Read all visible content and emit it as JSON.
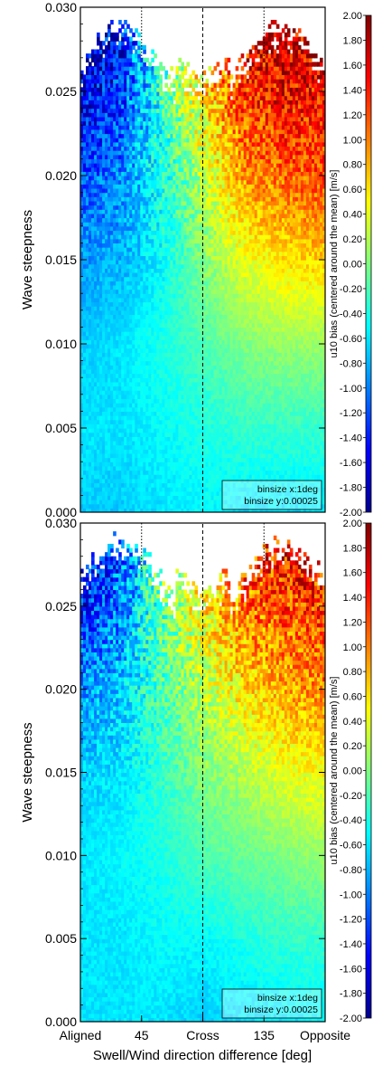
{
  "chart_data": [
    {
      "type": "heatmap",
      "xlabel": "",
      "ylabel": "Wave steepness",
      "xlim": [
        0,
        180
      ],
      "ylim": [
        0,
        0.03
      ],
      "yticks": [
        "0.000",
        "0.005",
        "0.010",
        "0.015",
        "0.020",
        "0.025",
        "0.030"
      ],
      "colorbar": {
        "label": "u10 bias (centered around the mean) [m/s]",
        "range": [
          -2.0,
          2.0
        ],
        "ticks": [
          "-2.00",
          "-1.80",
          "-1.60",
          "-1.40",
          "-1.20",
          "-1.00",
          "-0.80",
          "-0.60",
          "-0.40",
          "-0.20",
          "0.00",
          "0.20",
          "0.40",
          "0.60",
          "0.80",
          "1.00",
          "1.20",
          "1.40",
          "1.60",
          "1.80",
          "2.00"
        ]
      },
      "reference_lines": [
        45,
        90,
        135
      ],
      "annotation": [
        "binsize x:1deg",
        "binsize y:0.00025"
      ],
      "bias_field": {
        "x_deg": [
          0,
          30,
          60,
          90,
          120,
          150,
          180
        ],
        "y_steepness": [
          0.0,
          0.005,
          0.01,
          0.015,
          0.02,
          0.025
        ],
        "values": [
          [
            -0.7,
            -0.7,
            -0.6,
            -0.5,
            -0.6,
            -0.6,
            -0.6
          ],
          [
            -0.6,
            -0.6,
            -0.5,
            -0.4,
            -0.3,
            -0.3,
            -0.3
          ],
          [
            -0.7,
            -0.6,
            -0.4,
            -0.2,
            0.0,
            0.1,
            0.1
          ],
          [
            -0.9,
            -0.8,
            -0.5,
            0.0,
            0.4,
            0.6,
            0.7
          ],
          [
            -1.2,
            -1.0,
            -0.4,
            0.2,
            0.9,
            1.1,
            1.2
          ],
          [
            -1.6,
            -1.3,
            -0.3,
            0.6,
            1.3,
            1.5,
            1.5
          ]
        ]
      }
    },
    {
      "type": "heatmap",
      "xlabel": "Swell/Wind direction difference [deg]",
      "ylabel": "Wave steepness",
      "xlim": [
        0,
        180
      ],
      "ylim": [
        0,
        0.03
      ],
      "xticks": [
        {
          "value": 0,
          "label": "Aligned"
        },
        {
          "value": 45,
          "label": "45"
        },
        {
          "value": 90,
          "label": "Cross"
        },
        {
          "value": 135,
          "label": "135"
        },
        {
          "value": 180,
          "label": "Opposite"
        }
      ],
      "yticks": [
        "0.000",
        "0.005",
        "0.010",
        "0.015",
        "0.020",
        "0.025",
        "0.030"
      ],
      "colorbar": {
        "label": "u10 bias (centered around the mean) [m/s]",
        "range": [
          -2.0,
          2.0
        ],
        "ticks": [
          "-2.00",
          "-1.80",
          "-1.60",
          "-1.40",
          "-1.20",
          "-1.00",
          "-0.80",
          "-0.60",
          "-0.40",
          "-0.20",
          "0.00",
          "0.20",
          "0.40",
          "0.60",
          "0.80",
          "1.00",
          "1.20",
          "1.40",
          "1.60",
          "1.80",
          "2.00"
        ]
      },
      "reference_lines": [
        45,
        90,
        135
      ],
      "annotation": [
        "binsize x:1deg",
        "binsize y:0.00025"
      ],
      "bias_field": {
        "x_deg": [
          0,
          30,
          60,
          90,
          120,
          150,
          180
        ],
        "y_steepness": [
          0.0,
          0.005,
          0.01,
          0.015,
          0.02,
          0.025
        ],
        "values": [
          [
            -0.6,
            -0.6,
            -0.6,
            -0.7,
            -0.6,
            -0.6,
            -0.5
          ],
          [
            -0.6,
            -0.6,
            -0.5,
            -0.5,
            -0.4,
            -0.3,
            -0.3
          ],
          [
            -0.6,
            -0.5,
            -0.4,
            -0.2,
            -0.1,
            0.0,
            0.1
          ],
          [
            -0.7,
            -0.6,
            -0.3,
            0.0,
            0.2,
            0.4,
            0.5
          ],
          [
            -0.9,
            -0.7,
            -0.2,
            0.2,
            0.6,
            0.8,
            1.0
          ],
          [
            -1.4,
            -1.0,
            -0.1,
            0.5,
            1.0,
            1.2,
            1.3
          ]
        ]
      }
    }
  ]
}
